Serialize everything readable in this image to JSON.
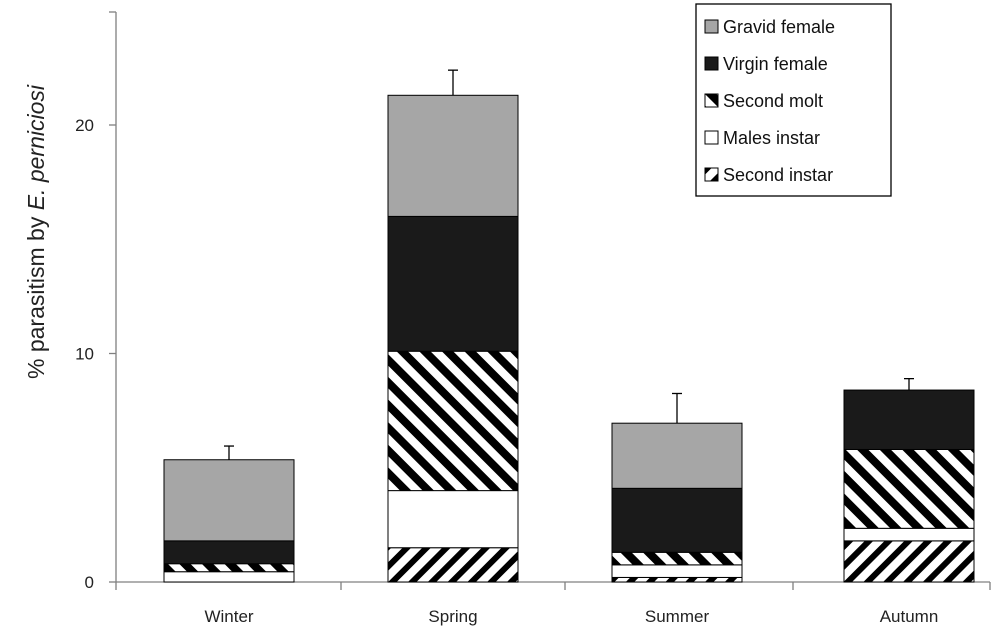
{
  "chart_data": {
    "type": "bar",
    "stacked": true,
    "ylabel_prefix": "% parasitism by ",
    "ylabel_species": "E. perniciosi",
    "xlabel": "",
    "ylim": [
      0,
      25
    ],
    "yticks": [
      0,
      10,
      20
    ],
    "grid": false,
    "legend_position": "top-right",
    "categories": [
      "Winter",
      "Spring",
      "Summer",
      "Autumn"
    ],
    "series": [
      {
        "name": "Second instar",
        "pattern": "forward-hatch",
        "values": [
          0.0,
          1.5,
          0.2,
          1.8
        ]
      },
      {
        "name": "Males instar",
        "pattern": "white",
        "values": [
          0.45,
          2.5,
          0.55,
          0.55
        ]
      },
      {
        "name": "Second molt",
        "pattern": "backward-hatch",
        "values": [
          0.35,
          6.1,
          0.55,
          3.45
        ]
      },
      {
        "name": "Virgin female",
        "pattern": "black",
        "values": [
          1.0,
          5.9,
          2.8,
          2.6
        ]
      },
      {
        "name": "Gravid female",
        "pattern": "gray",
        "values": [
          3.55,
          5.3,
          2.85,
          0.0
        ]
      }
    ],
    "totals": [
      5.35,
      21.3,
      6.95,
      8.4
    ],
    "error_bars": [
      0.6,
      1.1,
      1.3,
      0.5
    ],
    "legend_order": [
      "Gravid female",
      "Virgin female",
      "Second molt",
      "Males instar",
      "Second instar"
    ],
    "colors": {
      "gray": "#a6a6a6",
      "black": "#1a1a1a",
      "axis": "#808080",
      "stroke": "#000000"
    }
  }
}
